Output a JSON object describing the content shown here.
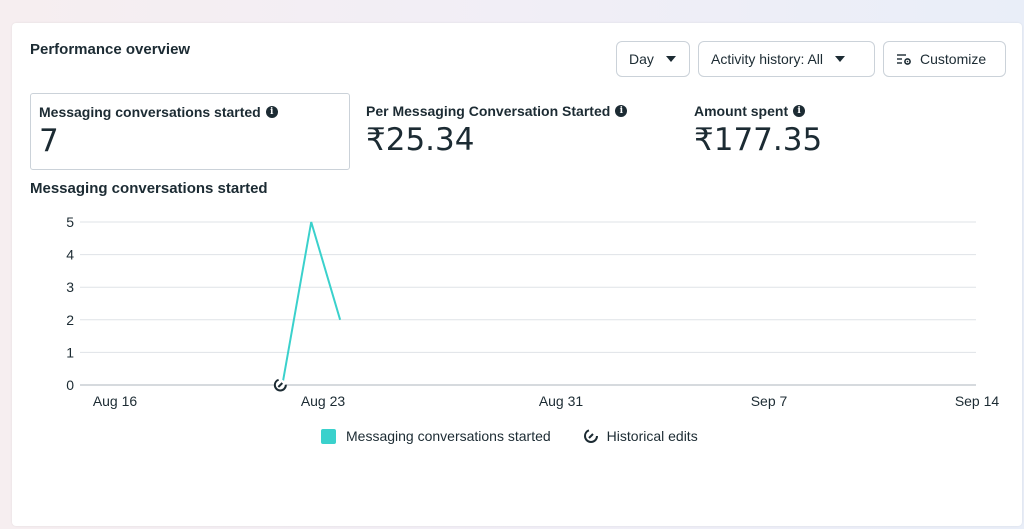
{
  "header": {
    "title": "Performance overview",
    "day_label": "Day",
    "activity_label": "Activity history: All",
    "customize_label": "Customize"
  },
  "metrics": [
    {
      "label": "Messaging conversations started",
      "value": "7"
    },
    {
      "label": "Per Messaging Conversation Started",
      "value": "₹25.34"
    },
    {
      "label": "Amount spent",
      "value": "₹177.35"
    }
  ],
  "chart_title": "Messaging conversations started",
  "legend": {
    "series_label": "Messaging conversations started",
    "edits_label": "Historical edits"
  },
  "colors": {
    "series": "#3ad1cc",
    "grid": "#dfe3e7",
    "text": "#1c2b33"
  },
  "chart_data": {
    "type": "line",
    "x_ticks": [
      "Aug 16",
      "Aug 23",
      "Aug 31",
      "Sep 7",
      "Sep 14"
    ],
    "y_ticks": [
      "5",
      "4",
      "3",
      "2",
      "1",
      "0"
    ],
    "ylim": [
      0,
      5
    ],
    "xlim": [
      "2024-08-14",
      "2024-09-14"
    ],
    "series": [
      {
        "name": "Messaging conversations started",
        "points": [
          {
            "x": "2024-08-21",
            "y": 0
          },
          {
            "x": "2024-08-22",
            "y": 5
          },
          {
            "x": "2024-08-23",
            "y": 2
          }
        ]
      }
    ],
    "historical_edits": [
      {
        "x": "2024-08-21"
      }
    ],
    "grid": true,
    "legend_position": "bottom"
  }
}
